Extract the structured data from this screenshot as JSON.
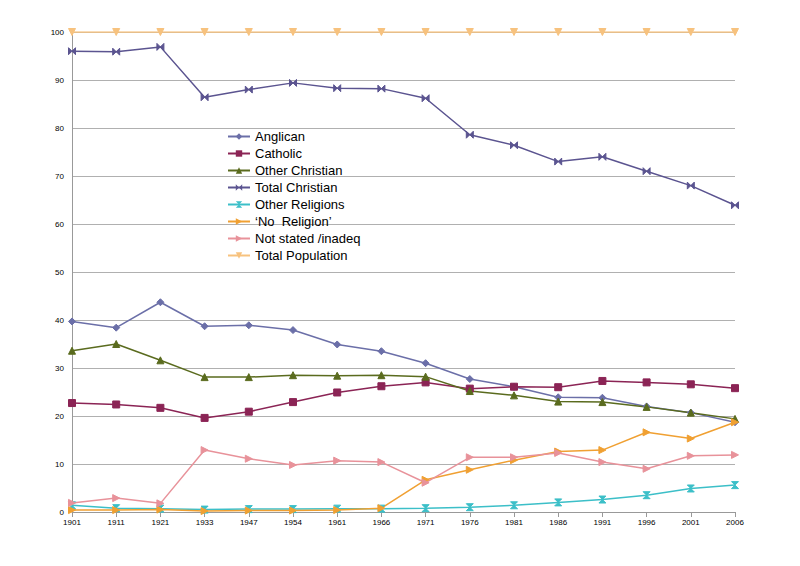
{
  "chart_data": {
    "type": "line",
    "categories": [
      "1901",
      "1911",
      "1921",
      "1933",
      "1947",
      "1954",
      "1961",
      "1966",
      "1971",
      "1976",
      "1981",
      "1986",
      "1991",
      "1996",
      "2001",
      "2006"
    ],
    "ylim": [
      0,
      100
    ],
    "yticks": [
      0,
      10,
      20,
      30,
      40,
      50,
      60,
      70,
      80,
      90,
      100
    ],
    "grid": true,
    "legend": "left",
    "series": [
      {
        "name": "Anglican",
        "color": "#6b6fa8",
        "marker": "diamond",
        "values": [
          39.7,
          38.4,
          43.7,
          38.7,
          38.9,
          37.9,
          34.9,
          33.5,
          31.0,
          27.7,
          26.1,
          23.9,
          23.8,
          22.0,
          20.7,
          18.7
        ]
      },
      {
        "name": "Catholic",
        "color": "#8b2455",
        "marker": "square",
        "values": [
          22.7,
          22.4,
          21.7,
          19.6,
          20.9,
          22.9,
          24.9,
          26.2,
          27.0,
          25.7,
          26.1,
          26.0,
          27.3,
          27.0,
          26.6,
          25.8
        ]
      },
      {
        "name": "Other Christian",
        "color": "#5a6b1e",
        "marker": "triangle",
        "values": [
          33.6,
          35.0,
          31.6,
          28.1,
          28.1,
          28.5,
          28.4,
          28.5,
          28.2,
          25.2,
          24.3,
          23.0,
          22.9,
          21.9,
          20.7,
          19.4
        ]
      },
      {
        "name": "Total Christian",
        "color": "#5b5490",
        "marker": "bowtie",
        "values": [
          96.0,
          95.9,
          96.9,
          86.4,
          88.0,
          89.4,
          88.3,
          88.2,
          86.2,
          78.6,
          76.4,
          73.0,
          74.0,
          71.0,
          68.0,
          63.9
        ]
      },
      {
        "name": "Other Religions",
        "color": "#3cbfc8",
        "marker": "hourglass",
        "values": [
          1.4,
          0.8,
          0.7,
          0.5,
          0.6,
          0.6,
          0.7,
          0.7,
          0.8,
          1.0,
          1.4,
          2.0,
          2.6,
          3.5,
          4.9,
          5.6
        ]
      },
      {
        "name": "‘No  Religion’",
        "color": "#f0a032",
        "marker": "triangle-right",
        "values": [
          0.4,
          0.4,
          0.5,
          0.2,
          0.3,
          0.3,
          0.4,
          0.8,
          6.7,
          8.8,
          10.8,
          12.6,
          12.9,
          16.6,
          15.3,
          18.7
        ]
      },
      {
        "name": "Not stated /inadeq",
        "color": "#e8929a",
        "marker": "triangle-right",
        "values": [
          1.9,
          2.9,
          1.8,
          12.9,
          11.1,
          9.8,
          10.7,
          10.4,
          6.1,
          11.4,
          11.4,
          12.3,
          10.4,
          9.0,
          11.7,
          11.9
        ]
      },
      {
        "name": "Total Population",
        "color": "#f7c27e",
        "marker": "triangle-down",
        "values": [
          100,
          100,
          100,
          100,
          100,
          100,
          100,
          100,
          100,
          100,
          100,
          100,
          100,
          100,
          100,
          100
        ]
      }
    ]
  }
}
